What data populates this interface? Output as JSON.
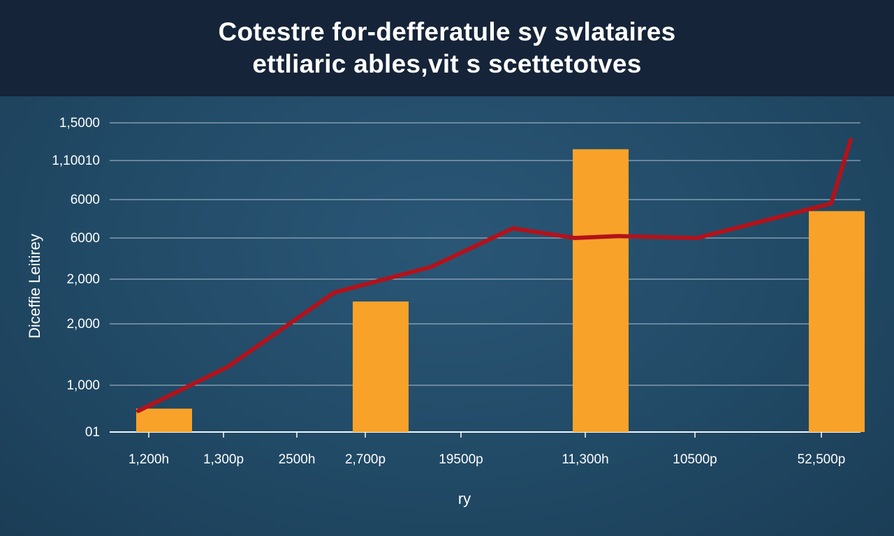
{
  "header": {
    "title_line1": "Cotestre for-defferatule sy svlataires",
    "title_line2": "ettliaric ables,vit s scettetotves"
  },
  "colors": {
    "header_bg": "#152438",
    "bar": "#f9a22a",
    "line": "#b3121b",
    "grid": "#a9bccb"
  },
  "chart_data": {
    "type": "bar",
    "title": "Cotestre for-defferatule sy svlataires ettliaric ables,vit s scettetotves",
    "xlabel": "ry",
    "ylabel": "Diceffie Leitirey",
    "grid": true,
    "y_tick_labels": [
      "01",
      "1,000",
      "2,000",
      "2,000",
      "6000",
      "6000",
      "1,10010",
      "1,5000"
    ],
    "categories": [
      "1,200h",
      "1,300p",
      "2500h",
      "2,700p",
      "19500p",
      "11,300h",
      "10500p",
      "52,500p"
    ],
    "series": [
      {
        "type": "bar",
        "points": [
          {
            "category": "1,200h",
            "value": 0.5
          },
          {
            "category": "2,700p",
            "value": 2.5
          },
          {
            "category": "11,300h",
            "value": 6.3
          },
          {
            "category": "52,500p",
            "value": 4.7
          }
        ]
      },
      {
        "type": "line",
        "points": [
          {
            "x": 0.0,
            "y": 0.45
          },
          {
            "x": 1.2,
            "y": 1.3
          },
          {
            "x": 2.7,
            "y": 2.7
          },
          {
            "x": 3.8,
            "y": 3.3
          },
          {
            "x": 4.5,
            "y": 4.25
          },
          {
            "x": 5.0,
            "y": 4.0
          },
          {
            "x": 5.4,
            "y": 4.05
          },
          {
            "x": 6.1,
            "y": 4.0
          },
          {
            "x": 7.2,
            "y": 4.9
          },
          {
            "x": 8.6,
            "y": 6.55
          }
        ]
      }
    ]
  }
}
